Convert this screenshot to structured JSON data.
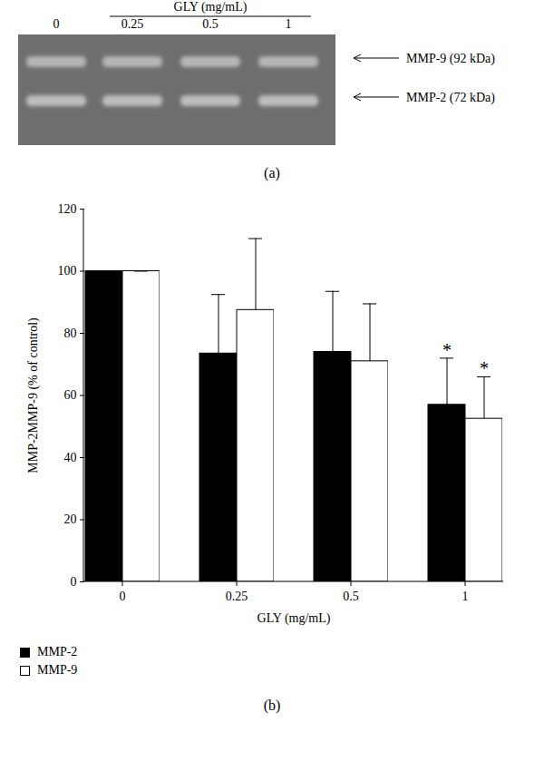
{
  "gel": {
    "panel_label": "(a)",
    "axis_title": "GLY (mg/mL)",
    "lanes": [
      "0",
      "0.25",
      "0.5",
      "1"
    ],
    "bands": [
      "MMP-9 (92 kDa)",
      "MMP-2 (72 kDa)"
    ]
  },
  "chart_data": {
    "type": "bar",
    "panel_label": "(b)",
    "x_label": "GLY (mg/mL)",
    "y_label": "MMP-2MMP-9 (% of control)",
    "categories": [
      "0",
      "0.25",
      "0.5",
      "1"
    ],
    "series": [
      {
        "name": "MMP-2",
        "color": "#000000",
        "values": [
          100,
          73.5,
          74,
          57
        ],
        "errors": [
          0,
          19,
          19.5,
          15
        ],
        "annotations": [
          null,
          null,
          null,
          "*"
        ]
      },
      {
        "name": "MMP-9",
        "color": "#ffffff",
        "values": [
          100,
          87.5,
          71,
          52.5
        ],
        "errors": [
          0,
          23,
          18.5,
          13.5
        ],
        "annotations": [
          null,
          null,
          null,
          "*"
        ]
      }
    ],
    "ylim": [
      0,
      120
    ],
    "yticks": [
      0,
      20,
      40,
      60,
      80,
      100,
      120
    ],
    "grid": false,
    "legend": "bottom left"
  }
}
